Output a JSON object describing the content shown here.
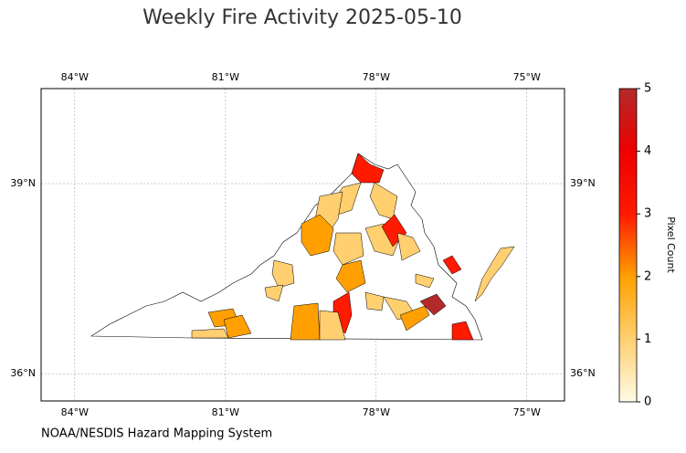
{
  "chart_data": {
    "type": "choropleth",
    "title": "Weekly Fire Activity 2025-05-10",
    "source": "NOAA/NESDIS Hazard Mapping System",
    "colorbar_label": "Pixel Count",
    "xlim": [
      -84.67,
      -74.25
    ],
    "ylim": [
      35.57,
      40.5
    ],
    "xticks": [
      {
        "value": -84,
        "label": "84°W"
      },
      {
        "value": -81,
        "label": "81°W"
      },
      {
        "value": -78,
        "label": "78°W"
      },
      {
        "value": -75,
        "label": "75°W"
      }
    ],
    "yticks": [
      {
        "value": 36,
        "label": "36°N"
      },
      {
        "value": 39,
        "label": "39°N"
      }
    ],
    "clim": [
      0,
      5
    ],
    "cticks": [
      0,
      1,
      2,
      3,
      4,
      5
    ],
    "colormap": [
      "#fffbe6",
      "#ffcf70",
      "#ffa000",
      "#ff1a00",
      "#ee0000",
      "#b22a2a"
    ],
    "grid": true,
    "values": [
      3,
      1,
      1,
      1,
      2,
      1,
      1,
      3,
      1,
      1,
      1,
      2,
      1,
      1,
      1,
      3,
      5,
      2,
      3,
      2,
      1,
      2,
      2,
      1,
      3,
      1
    ]
  }
}
